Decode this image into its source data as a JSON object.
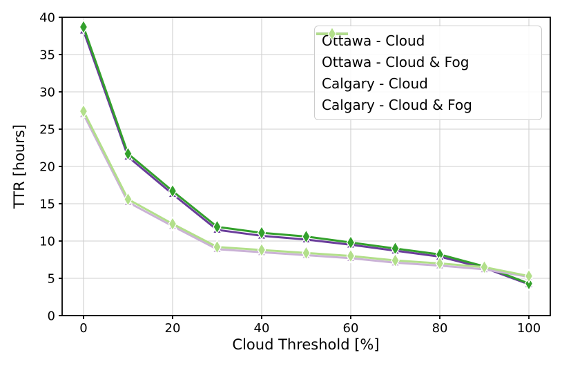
{
  "chart_data": {
    "type": "line",
    "title": "",
    "xlabel": "Cloud Threshold [%]",
    "ylabel": "TTR [hours]",
    "x": [
      0,
      10,
      20,
      30,
      40,
      50,
      60,
      70,
      80,
      90,
      100
    ],
    "xticks": [
      0,
      20,
      40,
      60,
      80,
      100
    ],
    "yticks": [
      0,
      5,
      10,
      15,
      20,
      25,
      30,
      35,
      40
    ],
    "xlim": [
      -4.8,
      104.8
    ],
    "ylim": [
      0,
      40
    ],
    "grid": true,
    "grid_color": "#cfcfcf",
    "legend_position": "upper right",
    "series": [
      {
        "name": "Ottawa - Cloud",
        "slug": "ottawa-cloud",
        "color": "#6a3d9a",
        "marker": "triangle",
        "values": [
          38.2,
          21.3,
          16.3,
          11.5,
          10.7,
          10.2,
          9.5,
          8.7,
          7.9,
          6.4,
          4.2
        ]
      },
      {
        "name": "Ottawa - Cloud & Fog",
        "slug": "ottawa-cloud-fog",
        "color": "#33a02c",
        "marker": "diamond",
        "values": [
          38.7,
          21.7,
          16.7,
          11.9,
          11.1,
          10.6,
          9.8,
          9.0,
          8.2,
          6.6,
          4.3
        ]
      },
      {
        "name": "Calgary - Cloud",
        "slug": "calgary-cloud",
        "color": "#cab2d6",
        "marker": "triangle",
        "values": [
          27.0,
          15.2,
          12.0,
          8.9,
          8.5,
          8.1,
          7.7,
          7.1,
          6.7,
          6.2,
          5.2
        ]
      },
      {
        "name": "Calgary - Cloud & Fog",
        "slug": "calgary-cloud-fog",
        "color": "#b2df8a",
        "marker": "diamond",
        "values": [
          27.4,
          15.6,
          12.3,
          9.2,
          8.8,
          8.4,
          8.0,
          7.4,
          7.0,
          6.5,
          5.3
        ]
      }
    ]
  }
}
